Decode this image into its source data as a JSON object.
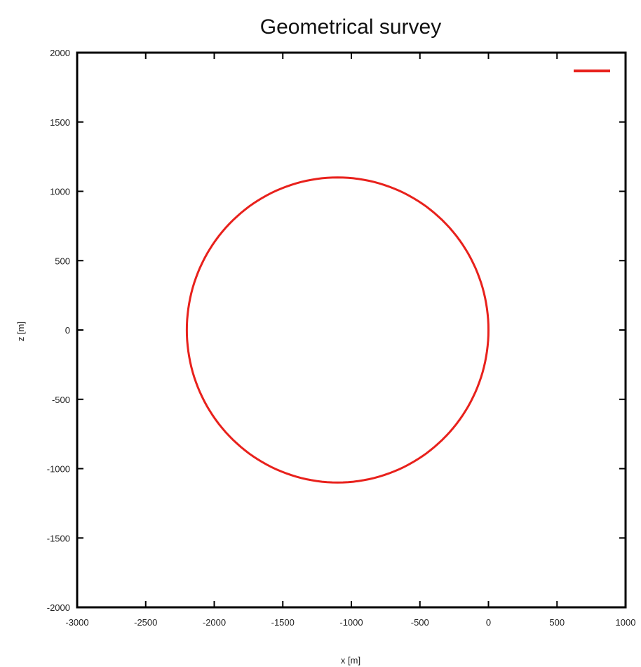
{
  "chart_data": {
    "type": "line",
    "title": "Geometrical survey",
    "xlabel": "x [m]",
    "ylabel": "z [m]",
    "xlim": [
      -3000,
      1000
    ],
    "ylim": [
      -2000,
      2000
    ],
    "x_ticks": [
      "-3000",
      "-2500",
      "-2000",
      "-1500",
      "-1000",
      "-500",
      "0",
      "500",
      "1000"
    ],
    "y_ticks": [
      "2000",
      "1500",
      "1000",
      "500",
      "0",
      "-500",
      "-1000",
      "-1500",
      "-2000"
    ],
    "grid": false,
    "legend_position": "top-right",
    "series": [
      {
        "color": "#e8211c",
        "shape": "circle",
        "center": [
          -1100,
          0
        ],
        "radius": 1100
      }
    ]
  }
}
